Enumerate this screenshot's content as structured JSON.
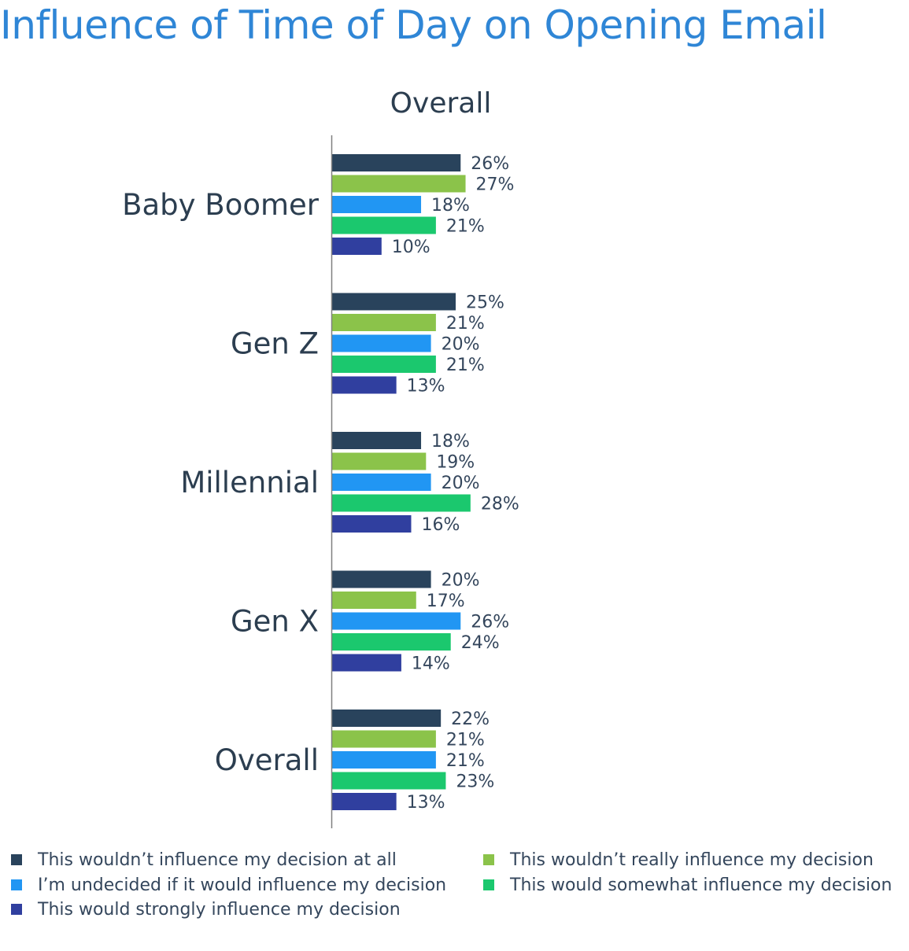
{
  "title": "Influence of Time of Day on Opening Email",
  "chart_data": {
    "type": "bar",
    "orientation": "horizontal",
    "title": "Overall",
    "categories": [
      "Baby Boomer",
      "Gen Z",
      "Millennial",
      "Gen X",
      "Overall"
    ],
    "series": [
      {
        "name": "This wouldn’t influence my decision at all",
        "color": "#29435c",
        "values": [
          26,
          25,
          18,
          20,
          22
        ]
      },
      {
        "name": "This wouldn’t really influence my decision",
        "color": "#8bc34a",
        "values": [
          27,
          21,
          19,
          17,
          21
        ]
      },
      {
        "name": "I’m undecided if it would influence my decision",
        "color": "#2196f3",
        "values": [
          18,
          20,
          20,
          26,
          21
        ]
      },
      {
        "name": "This would somewhat influence my decision",
        "color": "#1bc86e",
        "values": [
          21,
          21,
          28,
          24,
          23
        ]
      },
      {
        "name": "This would strongly influence my decision",
        "color": "#303f9f",
        "values": [
          10,
          13,
          16,
          14,
          13
        ]
      }
    ],
    "value_suffix": "%",
    "legend_position": "bottom",
    "grid": false
  }
}
